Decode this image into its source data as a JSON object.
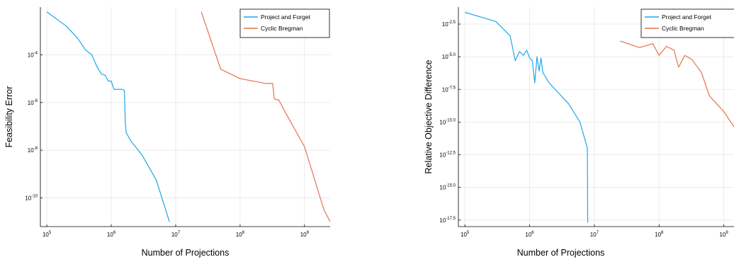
{
  "chart_data": [
    {
      "type": "line",
      "xlabel": "Number of Projections",
      "ylabel": "Feasibility Error",
      "xscale": "log",
      "yscale": "log",
      "xlim": [
        79400,
        2500000000
      ],
      "ylim": [
        6.3e-12,
        0.01
      ],
      "xticks": [
        {
          "base": "10",
          "exp": "5",
          "value": 100000
        },
        {
          "base": "10",
          "exp": "6",
          "value": 1000000
        },
        {
          "base": "10",
          "exp": "7",
          "value": 10000000
        },
        {
          "base": "10",
          "exp": "8",
          "value": 100000000
        },
        {
          "base": "10",
          "exp": "9",
          "value": 1000000000
        }
      ],
      "yticks": [
        {
          "base": "10",
          "exp": "-10",
          "value": 1e-10
        },
        {
          "base": "10",
          "exp": "-8",
          "value": 1e-08
        },
        {
          "base": "10",
          "exp": "-6",
          "value": 1e-06
        },
        {
          "base": "10",
          "exp": "-4",
          "value": 0.0001
        }
      ],
      "grid": true,
      "legend_position": "top-right",
      "series": [
        {
          "name": "Project and Forget",
          "color": "#1ea7e8",
          "points": [
            [
              100000,
              0.0063
            ],
            [
              200000,
              0.0016
            ],
            [
              300000,
              0.0005
            ],
            [
              400000,
              0.000158
            ],
            [
              500000,
              0.0001
            ],
            [
              600000,
              3.16e-05
            ],
            [
              700000,
              1.58e-05
            ],
            [
              800000,
              1.41e-05
            ],
            [
              900000,
              7.9e-06
            ],
            [
              1000000,
              7.9e-06
            ],
            [
              1100000,
              3.55e-06
            ],
            [
              1500000,
              3.55e-06
            ],
            [
              1600000,
              3.16e-06
            ],
            [
              1650000,
              1.58e-07
            ],
            [
              1700000,
              5.6e-08
            ],
            [
              2000000,
              2.5e-08
            ],
            [
              3000000,
              6.3e-09
            ],
            [
              5000000,
              5.6e-10
            ],
            [
              8000000,
              1e-11
            ]
          ]
        },
        {
          "name": "Cyclic Bregman",
          "color": "#e8704d",
          "points": [
            [
              25000000,
              0.0063
            ],
            [
              50000000,
              2.5e-05
            ],
            [
              100000000,
              1e-05
            ],
            [
              250000000,
              6.3e-06
            ],
            [
              320000000,
              6.3e-06
            ],
            [
              340000000,
              1.4e-06
            ],
            [
              400000000,
              1.26e-06
            ],
            [
              500000000,
              4e-07
            ],
            [
              1000000000,
              1.4e-08
            ],
            [
              2000000000,
              3.2e-11
            ],
            [
              2500000000,
              1e-11
            ]
          ]
        }
      ]
    },
    {
      "type": "line",
      "xlabel": "Number of Projections",
      "ylabel": "Relative Objective Difference",
      "xscale": "log",
      "yscale": "log",
      "xlim": [
        79400,
        2500000000
      ],
      "ylim": [
        -18.0,
        -1.2
      ],
      "xticks": [
        {
          "base": "10",
          "exp": "5",
          "value": 100000
        },
        {
          "base": "10",
          "exp": "6",
          "value": 1000000
        },
        {
          "base": "10",
          "exp": "7",
          "value": 10000000
        },
        {
          "base": "10",
          "exp": "8",
          "value": 100000000
        },
        {
          "base": "10",
          "exp": "9",
          "value": 1000000000
        }
      ],
      "yticks": [
        {
          "base": "10",
          "exp": "-17.5",
          "value": -17.5
        },
        {
          "base": "10",
          "exp": "-15.0",
          "value": -15.0
        },
        {
          "base": "10",
          "exp": "-12.5",
          "value": -12.5
        },
        {
          "base": "10",
          "exp": "-10.0",
          "value": -10.0
        },
        {
          "base": "10",
          "exp": "-7.5",
          "value": -7.5
        },
        {
          "base": "10",
          "exp": "-5.0",
          "value": -5.0
        },
        {
          "base": "10",
          "exp": "-2.5",
          "value": -2.5
        }
      ],
      "grid": true,
      "legend_position": "top-right",
      "series": [
        {
          "name": "Project and Forget",
          "color": "#1ea7e8",
          "points": [
            [
              100000,
              -1.6
            ],
            [
              300000,
              -2.3
            ],
            [
              500000,
              -3.4
            ],
            [
              600000,
              -5.3
            ],
            [
              700000,
              -4.6
            ],
            [
              800000,
              -4.9
            ],
            [
              900000,
              -4.5
            ],
            [
              1000000,
              -5.1
            ],
            [
              1100000,
              -5.3
            ],
            [
              1200000,
              -7.0
            ],
            [
              1300000,
              -5.0
            ],
            [
              1400000,
              -6.1
            ],
            [
              1500000,
              -5.1
            ],
            [
              1600000,
              -6.2
            ],
            [
              2000000,
              -7.0
            ],
            [
              4000000,
              -8.6
            ],
            [
              6000000,
              -10.0
            ],
            [
              7800000,
              -12.0
            ],
            [
              7900000,
              -17.7
            ]
          ]
        },
        {
          "name": "Cyclic Bregman",
          "color": "#e8704d",
          "points": [
            [
              25000000,
              -3.8
            ],
            [
              50000000,
              -4.3
            ],
            [
              80000000,
              -4.0
            ],
            [
              100000000,
              -4.9
            ],
            [
              130000000,
              -4.2
            ],
            [
              170000000,
              -4.5
            ],
            [
              200000000,
              -5.8
            ],
            [
              250000000,
              -4.9
            ],
            [
              320000000,
              -5.2
            ],
            [
              450000000,
              -6.2
            ],
            [
              600000000,
              -8.0
            ],
            [
              1000000000,
              -9.2
            ],
            [
              1600000000,
              -10.7
            ],
            [
              1800000000,
              -12.1
            ],
            [
              2000000000,
              -11.0
            ],
            [
              2500000000,
              -10.7
            ]
          ]
        }
      ]
    }
  ]
}
